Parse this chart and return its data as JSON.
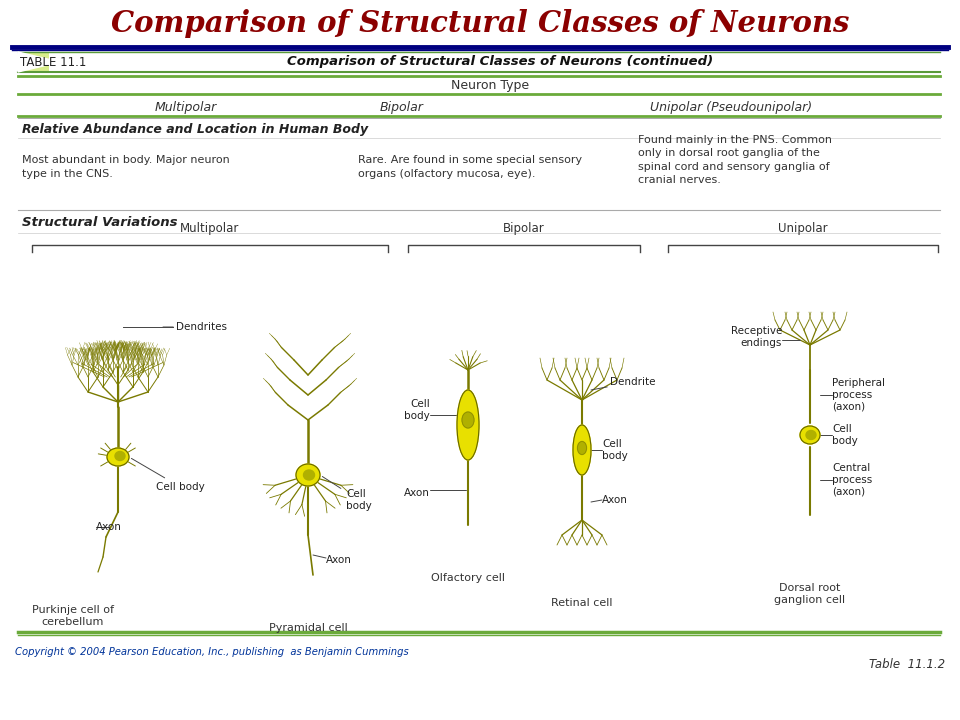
{
  "title": "Comparison of Structural Classes of Neurons",
  "title_color": "#8B0000",
  "title_fontsize": 21,
  "table_header": "Comparison of Structural Classes of Neurons (continued)",
  "table_number": "TABLE 11.1",
  "neuron_type_label": "Neuron Type",
  "col_headers": [
    "Multipolar",
    "Bipolar",
    "Unipolar (Pseudounipolar)"
  ],
  "section_label": "Relative Abundance and Location in Human Body",
  "col_descriptions": [
    "Most abundant in body. Major neuron\ntype in the CNS.",
    "Rare. Are found in some special sensory\norgans (olfactory mucosa, eye).",
    "Found mainly in the PNS. Common\nonly in dorsal root ganglia of the\nspinal cord and sensory ganglia of\ncranial nerves."
  ],
  "structural_var_label": "Structural Variations",
  "cell_labels_multipolar": [
    "Purkinje cell of\ncerebellum",
    "Pyramidal cell"
  ],
  "cell_labels_bipolar": [
    "Olfactory cell",
    "Retinal cell"
  ],
  "cell_labels_unipolar": [
    "Dorsal root\nganglion cell"
  ],
  "bracket_labels": [
    "Multipolar",
    "Bipolar",
    "Unipolar"
  ],
  "copyright": "Copyright © 2004 Pearson Education, Inc., publishing  as Benjamin Cummings",
  "table_ref": "Table  11.1.2",
  "bg_color": "#FFFFFF",
  "header_green_dark": "#5a9a3a",
  "header_green_light": "#c8e6a0",
  "green_line_color": "#6aaa3a",
  "navy_line_color": "#000080",
  "olive": "#7a7a00",
  "yellow": "#e8e000",
  "yellow_dark": "#b0b000",
  "dark_text": "#222222",
  "label_color": "#333333"
}
